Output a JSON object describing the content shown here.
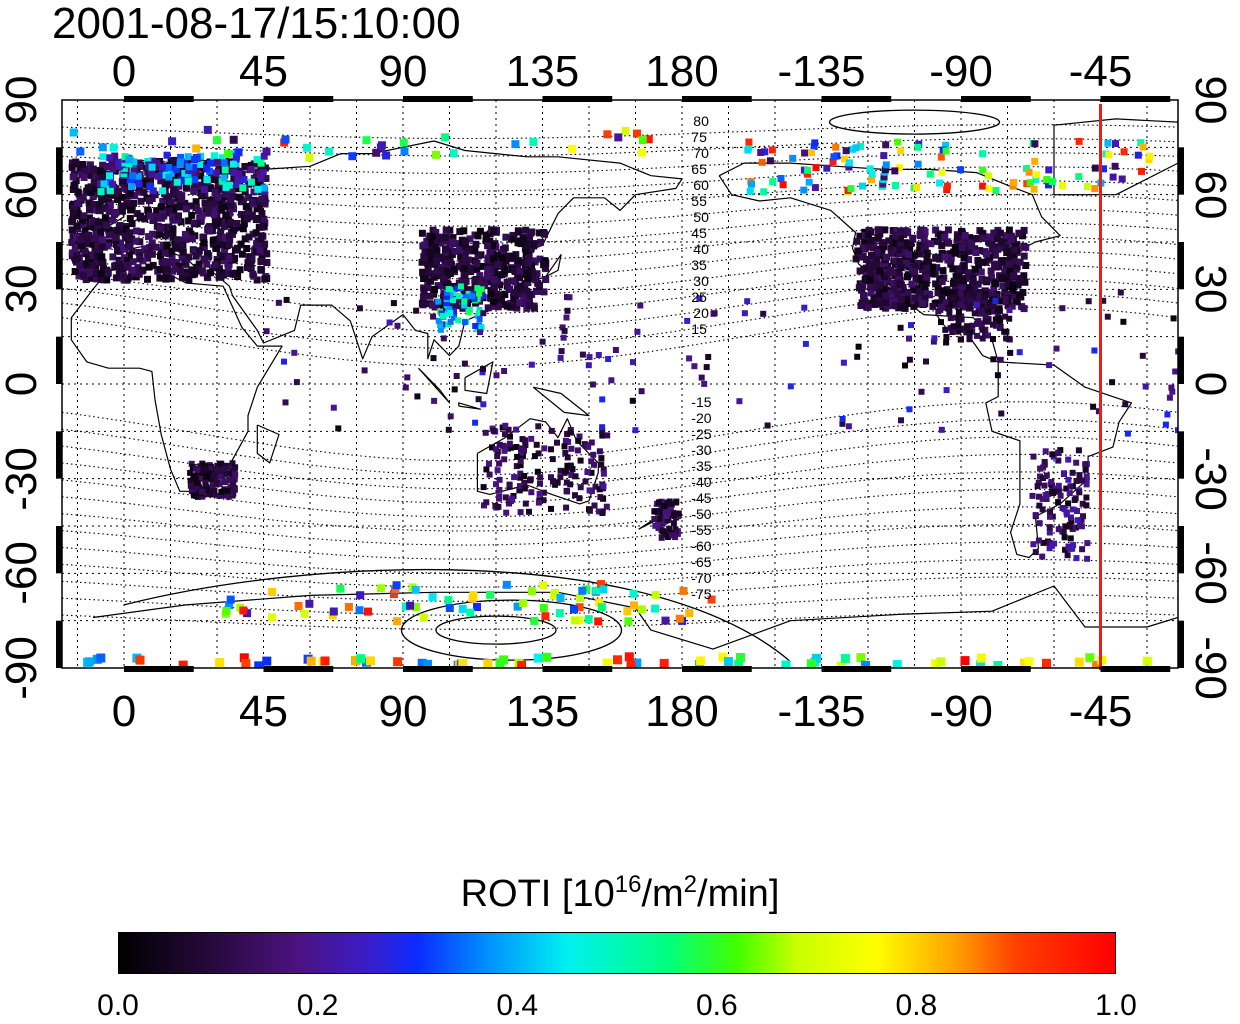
{
  "map": {
    "timestamp": "2001-08-17/15:10:00",
    "lon_ticks": [
      {
        "lon": 0,
        "label": "0"
      },
      {
        "lon": 45,
        "label": "45"
      },
      {
        "lon": 90,
        "label": "90"
      },
      {
        "lon": 135,
        "label": "135"
      },
      {
        "lon": 180,
        "label": "180"
      },
      {
        "lon": 225,
        "label": "-135"
      },
      {
        "lon": 270,
        "label": "-90"
      },
      {
        "lon": 315,
        "label": "-45"
      }
    ],
    "lat_ticks": [
      {
        "lat": 90,
        "label": "90"
      },
      {
        "lat": 60,
        "label": "60"
      },
      {
        "lat": 30,
        "label": "30"
      },
      {
        "lat": 0,
        "label": "0"
      },
      {
        "lat": -30,
        "label": "-30"
      },
      {
        "lat": -60,
        "label": "-60"
      },
      {
        "lat": -90,
        "label": "-90"
      }
    ],
    "lon_range": [
      -20,
      340
    ],
    "lat_range": [
      -90,
      90
    ],
    "grid": true,
    "terminator_lon": 315,
    "terminator_color": "#e0231a",
    "mlat_labels_north": [
      "80",
      "75",
      "70",
      "65",
      "60",
      "55",
      "50",
      "45",
      "40",
      "35",
      "30",
      "25",
      "20",
      "15"
    ],
    "mlat_labels_south": [
      "-15",
      "-20",
      "-25",
      "-30",
      "-35",
      "-40",
      "-45",
      "-50",
      "-55",
      "-60",
      "-65",
      "-70",
      "-75"
    ]
  },
  "colorbar": {
    "title_prefix": "ROTI  [10",
    "title_exp1": "16",
    "title_mid": "/m",
    "title_exp2": "2",
    "title_suffix": "/min]",
    "ticks": [
      "0.0",
      "0.2",
      "0.4",
      "0.6",
      "0.8",
      "1.0"
    ],
    "range": [
      0.0,
      1.0
    ]
  }
}
